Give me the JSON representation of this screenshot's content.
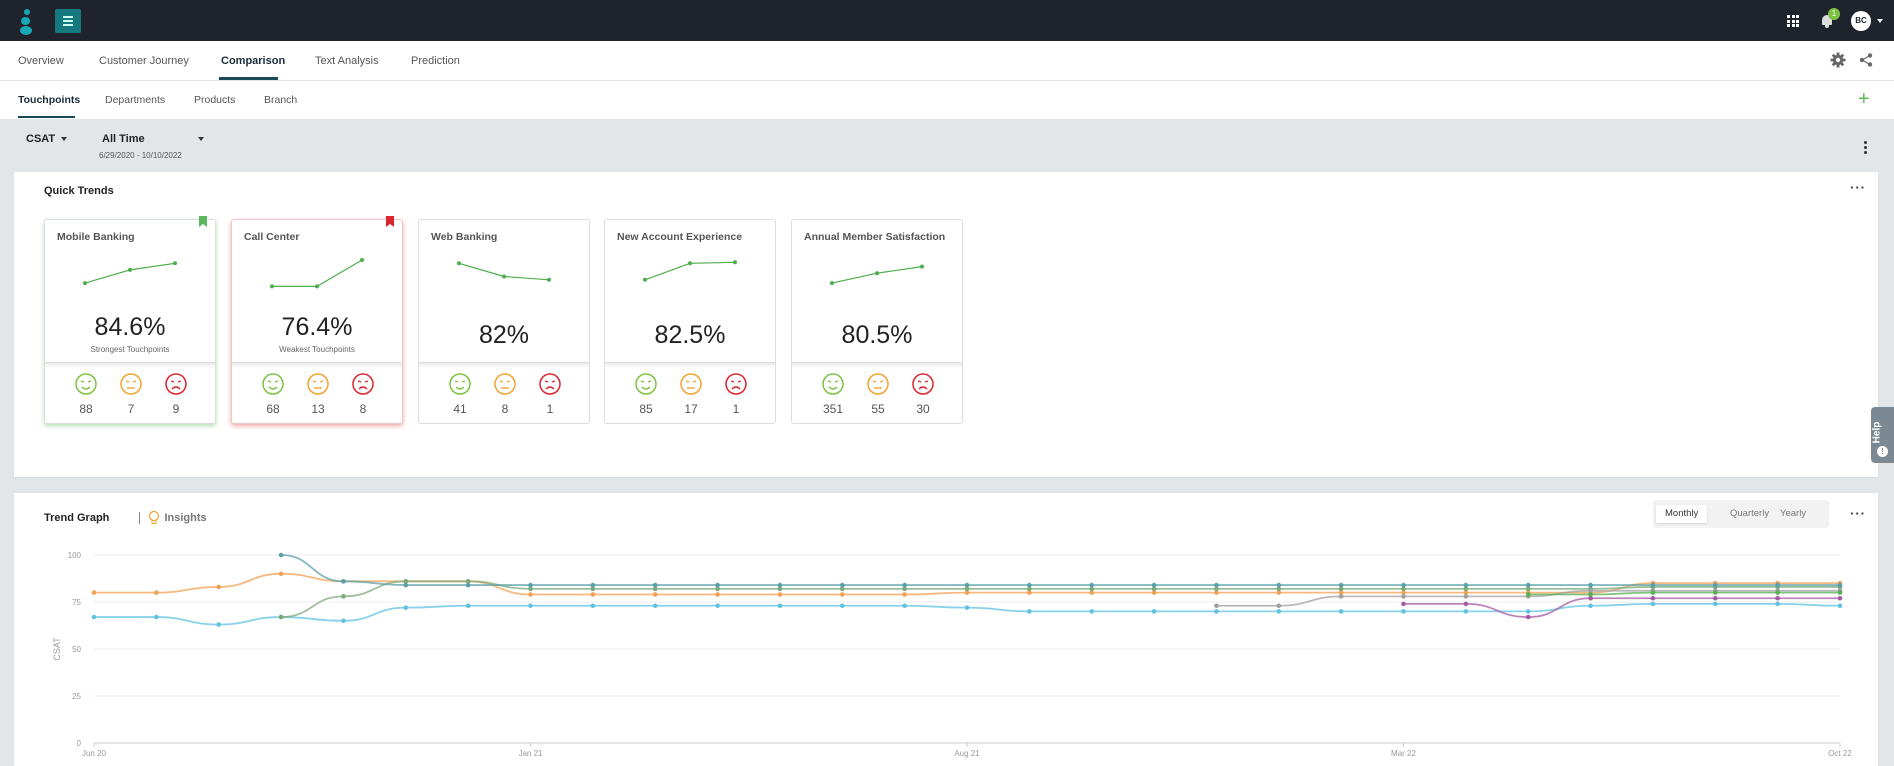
{
  "topbar": {
    "logo_icon": "brand-logo",
    "menu_icon": "hamburger-icon",
    "apps_icon": "grid-icon",
    "notification_icon": "bell-icon",
    "notification_count": "1",
    "user_initials": "BC"
  },
  "main_tabs": [
    "Overview",
    "Customer Journey",
    "Comparison",
    "Text Analysis",
    "Prediction"
  ],
  "main_tabs_active": "Comparison",
  "sub_tabs": [
    "Touchpoints",
    "Departments",
    "Products",
    "Branch"
  ],
  "sub_tabs_active": "Touchpoints",
  "filters": {
    "metric": "CSAT",
    "period": "All Time",
    "date_range": "6/29/2020 - 10/10/2022"
  },
  "quick_trends": {
    "title": "Quick Trends",
    "cards": [
      {
        "name": "Mobile Banking",
        "score": "84.6%",
        "subtitle": "Strongest Touchpoints",
        "happy": "88",
        "neutral": "7",
        "sad": "9",
        "bookmark": "green",
        "spark": [
          3,
          7,
          9
        ]
      },
      {
        "name": "Call Center",
        "score": "76.4%",
        "subtitle": "Weakest Touchpoints",
        "happy": "68",
        "neutral": "13",
        "sad": "8",
        "bookmark": "red",
        "spark": [
          2,
          2,
          10
        ]
      },
      {
        "name": "Web Banking",
        "score": "82%",
        "subtitle": "",
        "happy": "41",
        "neutral": "8",
        "sad": "1",
        "bookmark": "",
        "spark": [
          9,
          5,
          4
        ]
      },
      {
        "name": "New Account Experience",
        "score": "82.5%",
        "subtitle": "",
        "happy": "85",
        "neutral": "17",
        "sad": "1",
        "bookmark": "",
        "spark": [
          4,
          9,
          9.3
        ]
      },
      {
        "name": "Annual Member Satisfaction",
        "score": "80.5%",
        "subtitle": "",
        "happy": "351",
        "neutral": "55",
        "sad": "30",
        "bookmark": "",
        "spark": [
          3,
          6,
          8
        ]
      }
    ]
  },
  "trend_graph": {
    "title": "Trend Graph",
    "insights_label": "Insights",
    "insights_icon": "lightbulb-icon",
    "periods": [
      "Monthly",
      "Quarterly",
      "Yearly"
    ],
    "period_active": "Monthly"
  },
  "help_label": "Help",
  "colors": {
    "happy": "#7cc242",
    "neutral": "#f0a431",
    "sad": "#d9262f",
    "spark": "#4cae4c",
    "series": [
      "#f2a154",
      "#60c1e0",
      "#7ba97a",
      "#a0a0a0",
      "#a45ba3",
      "#5aa0a8",
      "#57b057"
    ]
  },
  "chart_data": {
    "type": "line",
    "ylabel": "CSAT",
    "ylim": [
      0,
      100
    ],
    "yticks": [
      "100",
      "75",
      "50",
      "25",
      "0"
    ],
    "x": [
      "Jun 20",
      "Jul 20",
      "Aug 20",
      "Sep 20",
      "Oct 20",
      "Nov 20",
      "Dec 20",
      "Jan 21",
      "Feb 21",
      "Mar 21",
      "Apr 21",
      "May 21",
      "Jun 21",
      "Jul 21",
      "Aug 21",
      "Sep 21",
      "Oct 21",
      "Nov 21",
      "Dec 21",
      "Jan 22",
      "Feb 22",
      "Mar 22",
      "Apr 22",
      "May 22",
      "Jun 22",
      "Jul 22",
      "Aug 22",
      "Sep 22",
      "Oct 22"
    ],
    "xtick_labels": [
      "Jun 20",
      "Jan 21",
      "Aug 21",
      "Mar 22",
      "Oct 22"
    ],
    "series": [
      {
        "values": [
          80,
          80,
          83,
          90,
          86,
          86,
          86,
          79,
          79,
          79,
          79,
          79,
          79,
          79,
          80,
          80,
          80,
          80,
          80,
          80,
          80,
          80,
          80,
          80,
          80,
          85,
          85,
          85,
          85
        ]
      },
      {
        "values": [
          67,
          67,
          63,
          67,
          65,
          72,
          73,
          73,
          73,
          73,
          73,
          73,
          73,
          73,
          72,
          70,
          70,
          70,
          70,
          70,
          70,
          70,
          70,
          70,
          73,
          74,
          74,
          74,
          73
        ]
      },
      {
        "values": [
          null,
          null,
          null,
          67,
          78,
          86,
          86,
          82,
          82,
          82,
          82,
          82,
          82,
          82,
          82,
          82,
          82,
          82,
          82,
          82,
          82,
          82,
          82,
          82,
          82,
          83,
          83,
          83,
          83
        ]
      },
      {
        "values": [
          null,
          null,
          null,
          null,
          null,
          null,
          null,
          null,
          null,
          null,
          null,
          null,
          null,
          null,
          null,
          null,
          null,
          null,
          73,
          73,
          78,
          78,
          78,
          78,
          81,
          81,
          81,
          81,
          81
        ]
      },
      {
        "values": [
          null,
          null,
          null,
          null,
          null,
          null,
          null,
          null,
          null,
          null,
          null,
          null,
          null,
          null,
          null,
          null,
          null,
          null,
          null,
          null,
          null,
          74,
          74,
          67,
          77,
          77,
          77,
          77,
          77
        ]
      },
      {
        "values": [
          null,
          null,
          null,
          100,
          86,
          84,
          84,
          84,
          84,
          84,
          84,
          84,
          84,
          84,
          84,
          84,
          84,
          84,
          84,
          84,
          84,
          84,
          84,
          84,
          84,
          84,
          84,
          84,
          84
        ]
      },
      {
        "values": [
          null,
          null,
          null,
          null,
          null,
          null,
          null,
          null,
          null,
          null,
          null,
          null,
          null,
          null,
          null,
          null,
          null,
          null,
          null,
          null,
          null,
          null,
          null,
          79,
          79,
          80,
          80,
          80,
          80
        ]
      }
    ]
  }
}
